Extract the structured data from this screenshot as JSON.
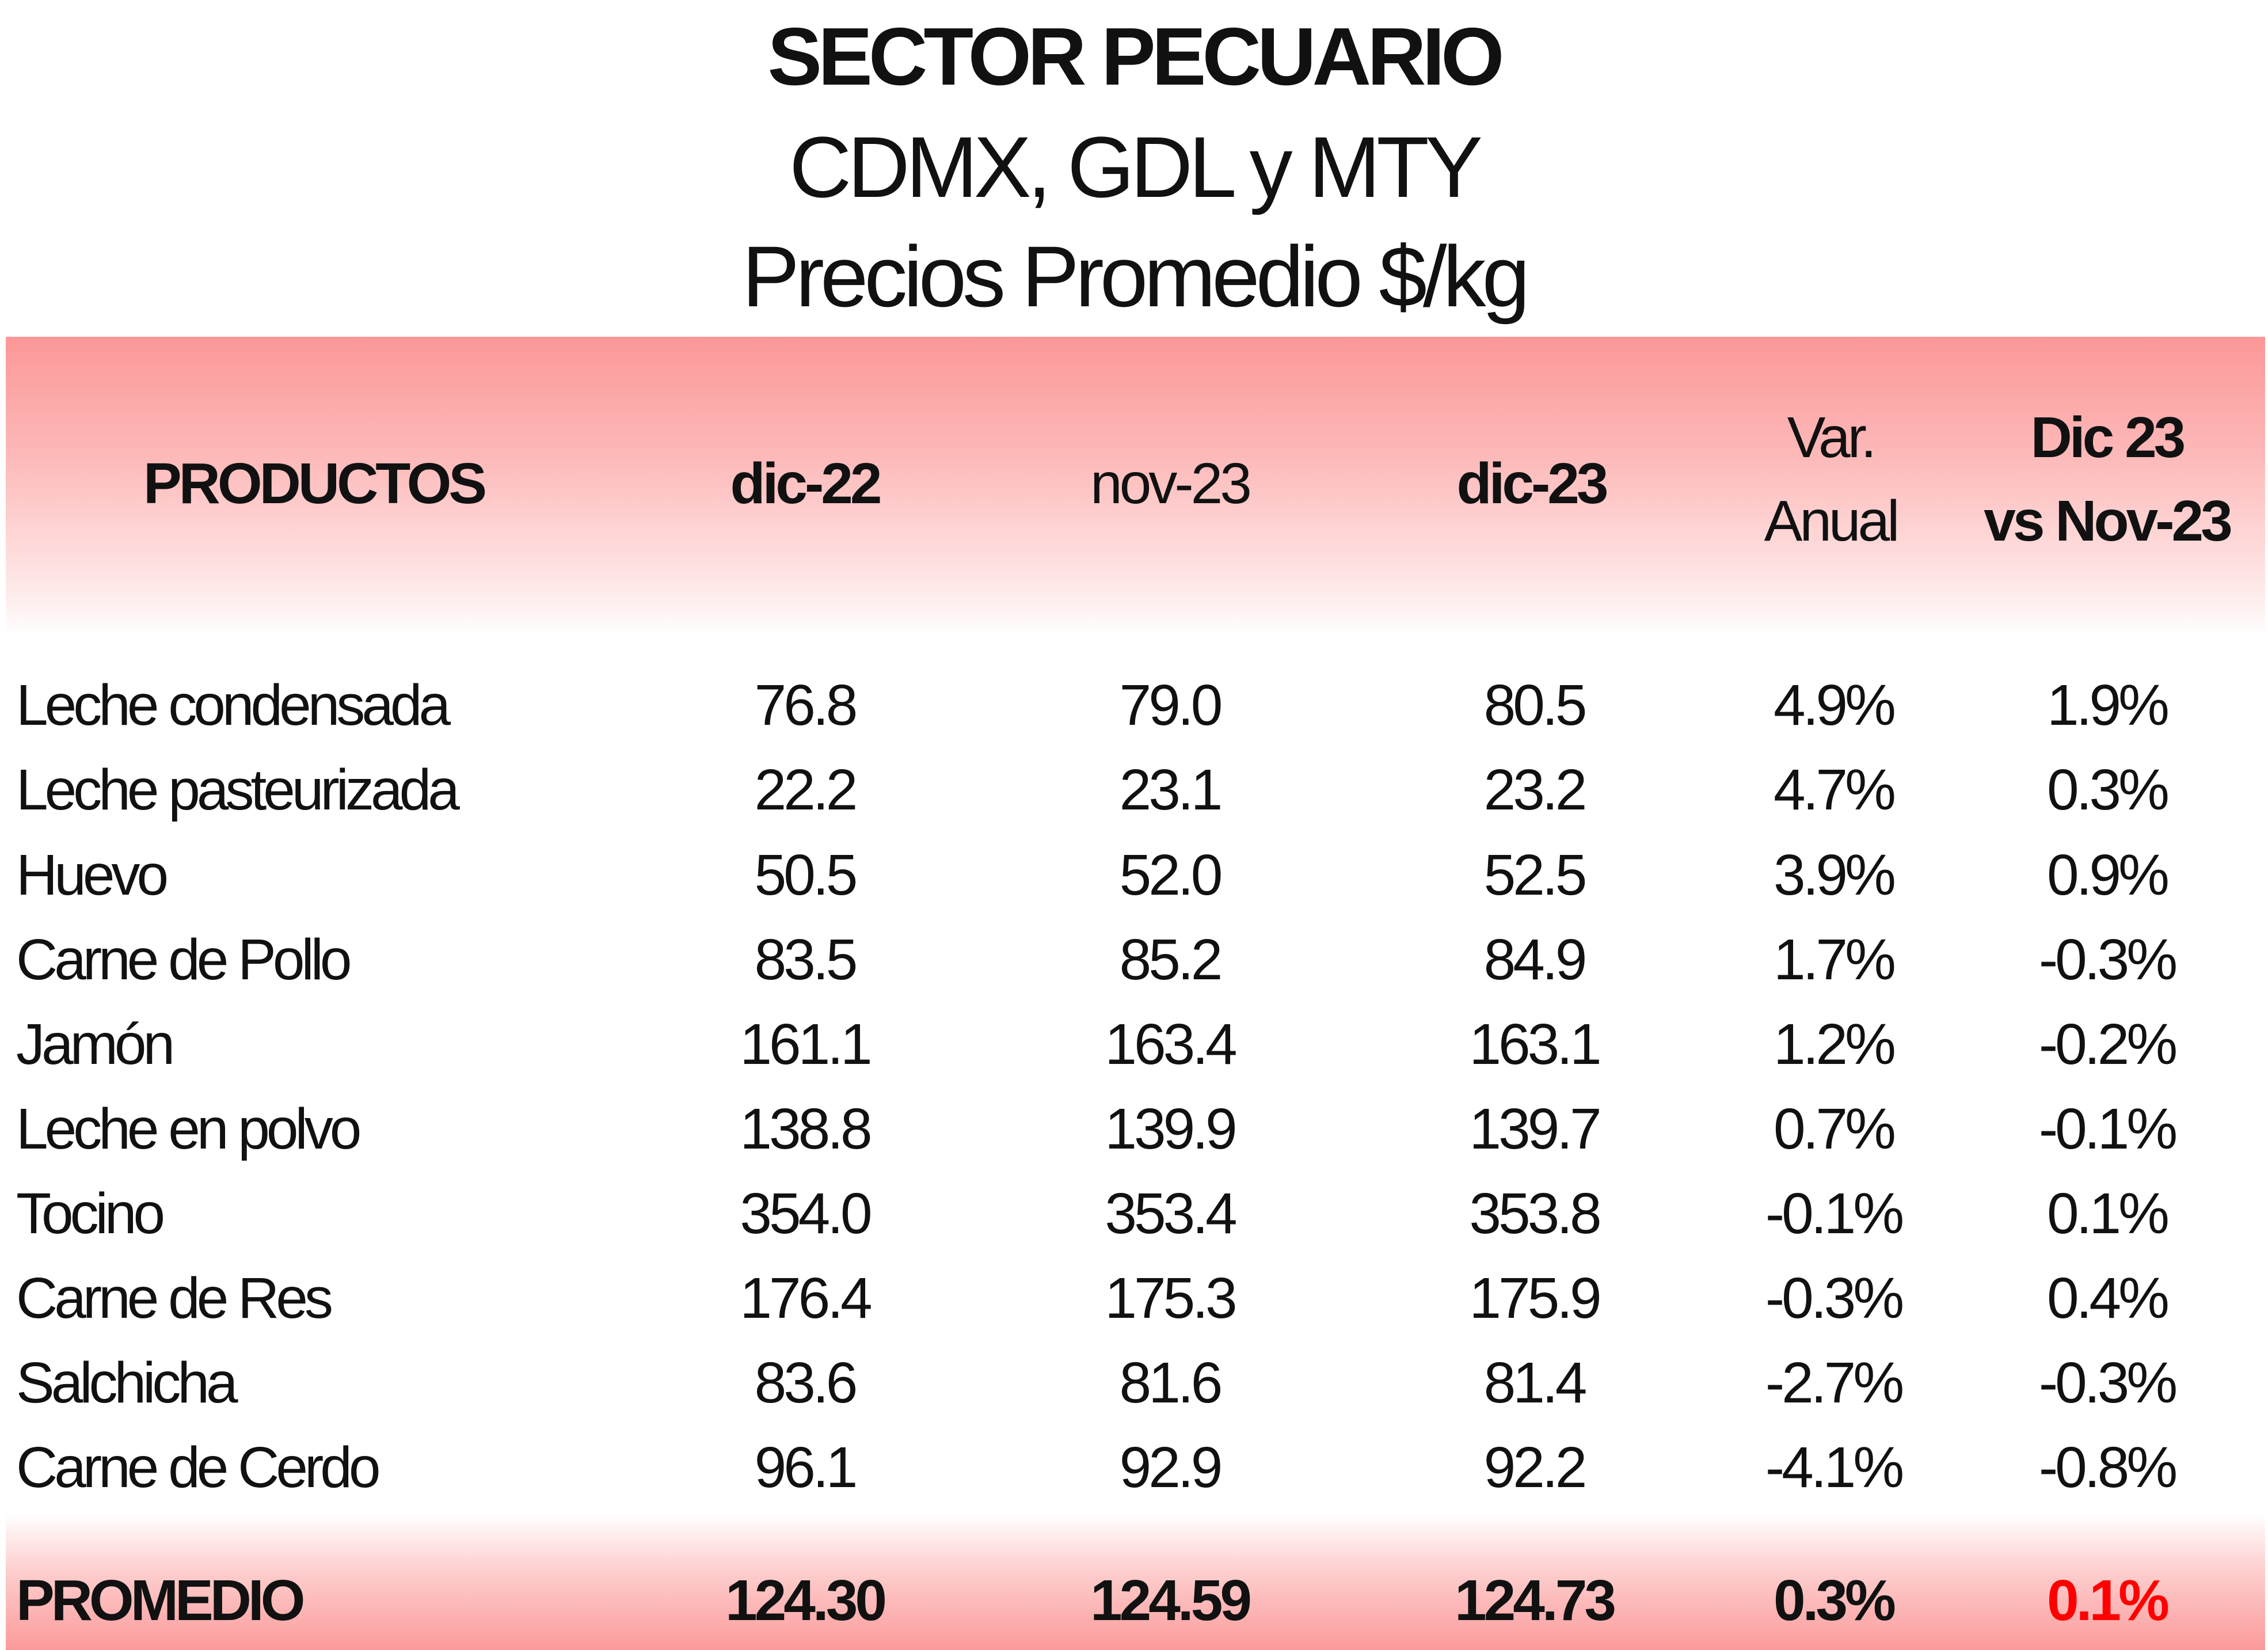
{
  "title": {
    "line1": "SECTOR PECUARIO",
    "line2": "CDMX, GDL y MTY",
    "line3": "Precios Promedio $/kg"
  },
  "columns": {
    "productos": "PRODUCTOS",
    "dic22": "dic-22",
    "nov23": "nov-23",
    "dic23": "dic-23",
    "var_anual_1": "Var.",
    "var_anual_2": "Anual",
    "dic_vs_nov_1": "Dic 23",
    "dic_vs_nov_2": "vs Nov-23"
  },
  "rows": [
    {
      "product": "Leche condensada",
      "dic22": "76.8",
      "nov23": "79.0",
      "dic23": "80.5",
      "var_anual": "4.9%",
      "dic_vs_nov": "1.9%"
    },
    {
      "product": "Leche pasteurizada",
      "dic22": "22.2",
      "nov23": "23.1",
      "dic23": "23.2",
      "var_anual": "4.7%",
      "dic_vs_nov": "0.3%"
    },
    {
      "product": "Huevo",
      "dic22": "50.5",
      "nov23": "52.0",
      "dic23": "52.5",
      "var_anual": "3.9%",
      "dic_vs_nov": "0.9%"
    },
    {
      "product": "Carne de Pollo",
      "dic22": "83.5",
      "nov23": "85.2",
      "dic23": "84.9",
      "var_anual": "1.7%",
      "dic_vs_nov": "-0.3%"
    },
    {
      "product": "Jamón",
      "dic22": "161.1",
      "nov23": "163.4",
      "dic23": "163.1",
      "var_anual": "1.2%",
      "dic_vs_nov": "-0.2%"
    },
    {
      "product": "Leche en polvo",
      "dic22": "138.8",
      "nov23": "139.9",
      "dic23": "139.7",
      "var_anual": "0.7%",
      "dic_vs_nov": "-0.1%"
    },
    {
      "product": "Tocino",
      "dic22": "354.0",
      "nov23": "353.4",
      "dic23": "353.8",
      "var_anual": "-0.1%",
      "dic_vs_nov": "0.1%"
    },
    {
      "product": "Carne de Res",
      "dic22": "176.4",
      "nov23": "175.3",
      "dic23": "175.9",
      "var_anual": "-0.3%",
      "dic_vs_nov": "0.4%"
    },
    {
      "product": "Salchicha",
      "dic22": "83.6",
      "nov23": "81.6",
      "dic23": "81.4",
      "var_anual": "-2.7%",
      "dic_vs_nov": "-0.3%"
    },
    {
      "product": "Carne de Cerdo",
      "dic22": "96.1",
      "nov23": "92.9",
      "dic23": "92.2",
      "var_anual": "-4.1%",
      "dic_vs_nov": "-0.8%"
    }
  ],
  "promedio": {
    "label": "PROMEDIO",
    "dic22": "124.30",
    "nov23": "124.59",
    "dic23": "124.73",
    "var_anual": "0.3%",
    "dic_vs_nov": "0.1%"
  },
  "colors": {
    "header_band": "#fc9797",
    "highlight_red": "#ff0000"
  }
}
